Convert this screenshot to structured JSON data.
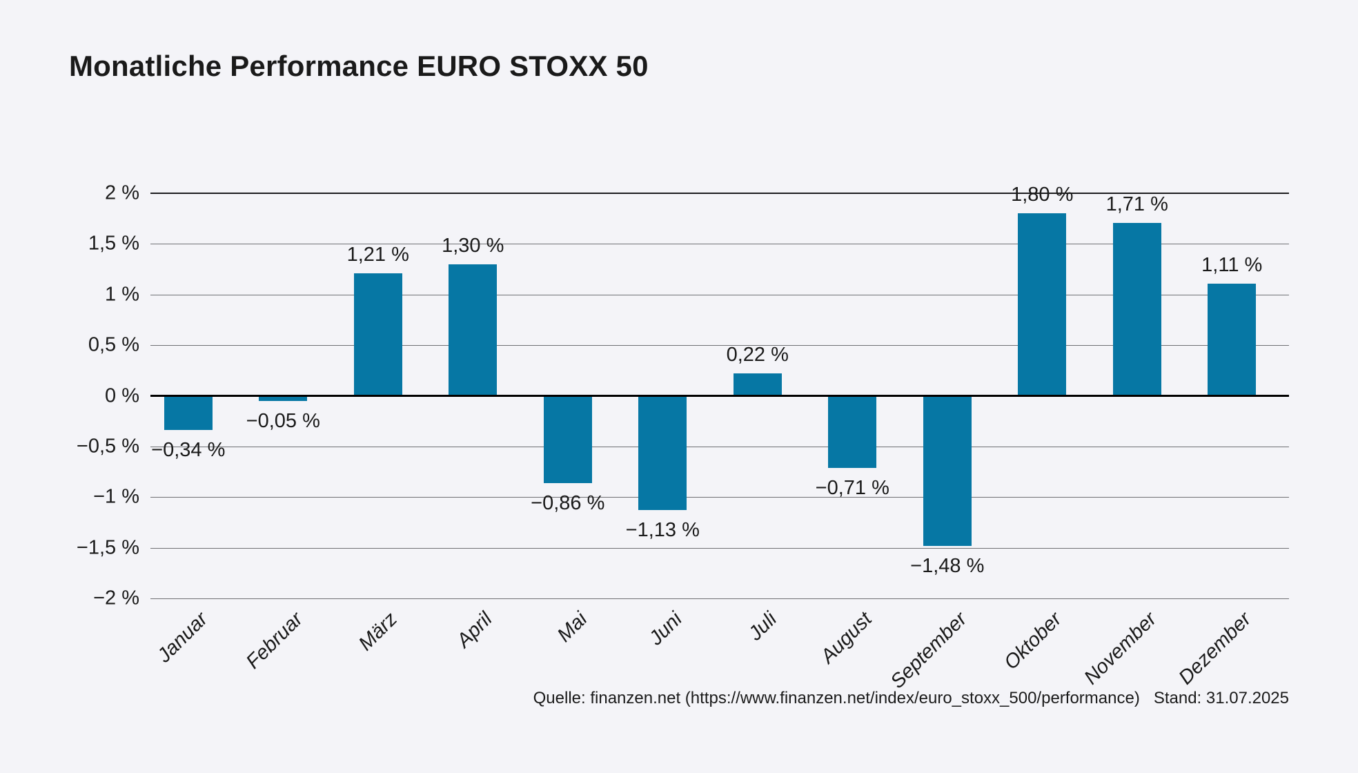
{
  "title": "Monatliche Performance EURO STOXX 50",
  "footer": {
    "source": "Quelle: finanzen.net (https://www.finanzen.net/index/euro_stoxx_500/performance)",
    "stand": "Stand: 31.07.2025"
  },
  "colors": {
    "background": "#f4f4f8",
    "bar": "#0677a4",
    "zero_axis": "#000000",
    "gridline": "#6e6f73",
    "text": "#1a1a1a"
  },
  "chart_data": {
    "type": "bar",
    "title": "Monatliche Performance EURO STOXX 50",
    "categories": [
      "Januar",
      "Februar",
      "März",
      "April",
      "Mai",
      "Juni",
      "Juli",
      "August",
      "September",
      "Oktober",
      "November",
      "Dezember"
    ],
    "values": [
      -0.34,
      -0.05,
      1.21,
      1.3,
      -0.86,
      -1.13,
      0.22,
      -0.71,
      -1.48,
      1.8,
      1.71,
      1.11
    ],
    "value_labels": [
      "−0,34 %",
      "−0,05 %",
      "1,21 %",
      "1,30 %",
      "−0,86 %",
      "−1,13 %",
      "0,22 %",
      "−0,71 %",
      "−1,48 %",
      "1,80 %",
      "1,71 %",
      "1,11 %"
    ],
    "yticks": [
      {
        "label": "2 %",
        "value": 2
      },
      {
        "label": "1,5 %",
        "value": 1.5
      },
      {
        "label": "1 %",
        "value": 1
      },
      {
        "label": "0,5 %",
        "value": 0.5
      },
      {
        "label": "0 %",
        "value": 0
      },
      {
        "label": "−0,5 %",
        "value": -0.5
      },
      {
        "label": "−1 %",
        "value": -1
      },
      {
        "label": "−1,5 %",
        "value": -1.5
      },
      {
        "label": "−2 %",
        "value": -2
      }
    ],
    "ylim": [
      -2,
      2
    ],
    "xlabel": "",
    "ylabel": "",
    "grid": true,
    "legend": "none",
    "bar_color": "#0677a4",
    "unit": "%",
    "decimal_separator": ","
  }
}
